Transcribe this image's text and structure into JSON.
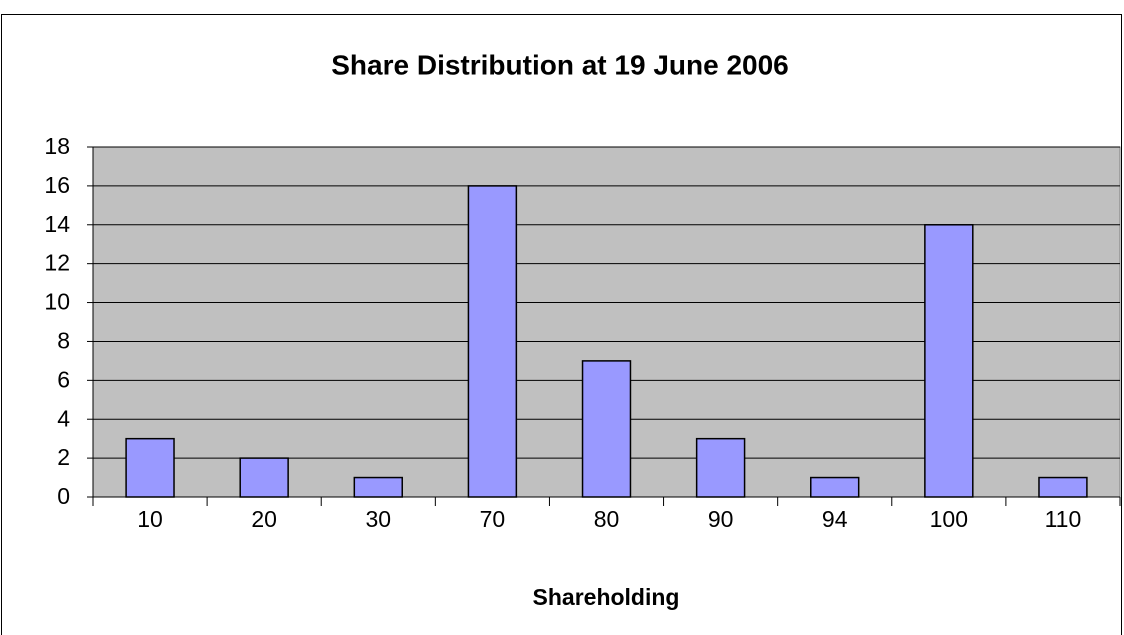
{
  "chart_data": {
    "type": "bar",
    "title": "Share Distribution at 19 June 2006",
    "x_label": "Shareholding",
    "categories": [
      "10",
      "20",
      "30",
      "70",
      "80",
      "90",
      "94",
      "100",
      "110"
    ],
    "values": [
      3,
      2,
      1,
      16,
      7,
      3,
      1,
      14,
      1
    ],
    "color": "#9999ff",
    "ylim": [
      0,
      18
    ],
    "yticks": [
      0,
      2,
      4,
      6,
      8,
      10,
      12,
      14,
      16,
      18
    ],
    "grid": true
  }
}
